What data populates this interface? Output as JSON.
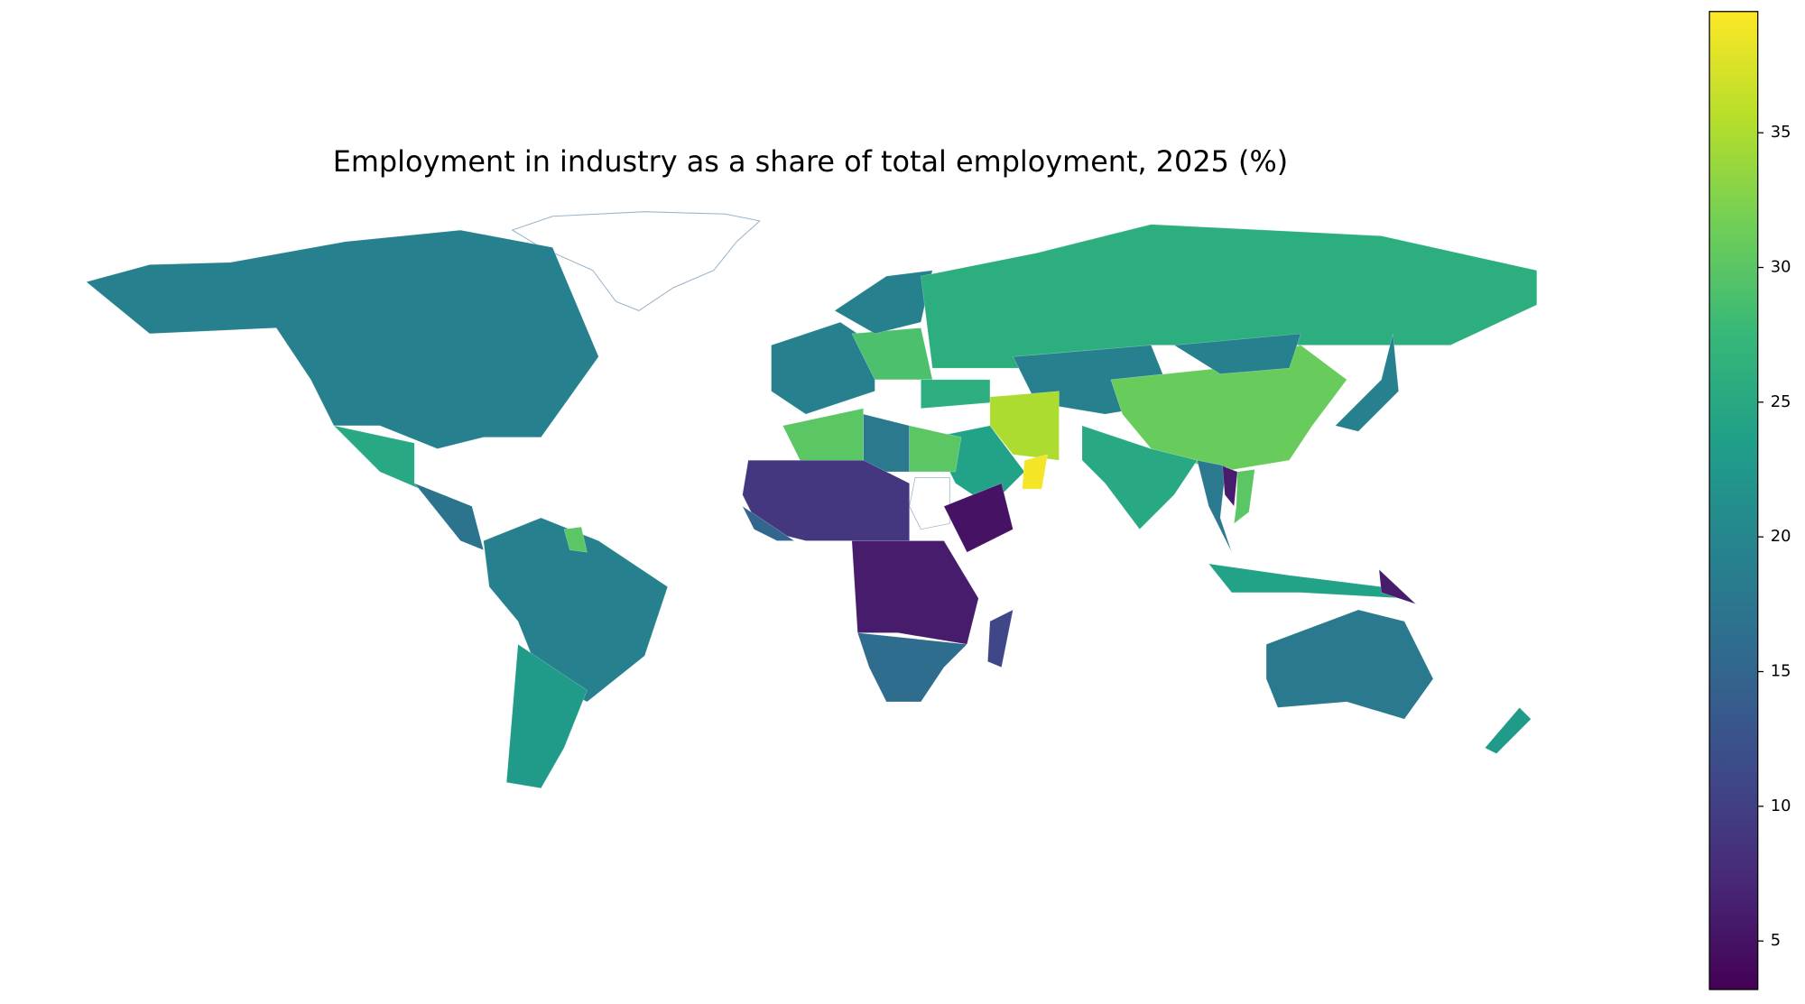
{
  "chart_data": {
    "type": "choropleth",
    "title": "Employment in industry as a share of total employment, 2025 (%)",
    "values": [
      19,
      25,
      17,
      19,
      23,
      30,
      19,
      29,
      19,
      26,
      19,
      35,
      24,
      39,
      30,
      18,
      30,
      9,
      15,
      5,
      6,
      16,
      11,
      31,
      19,
      25,
      18,
      24,
      6,
      18,
      23,
      19,
      26,
      6,
      30
    ],
    "colormap": "viridis",
    "zlim": [
      3.2,
      39.5
    ],
    "zticks": [
      5,
      10,
      15,
      20,
      25,
      30,
      35
    ]
  }
}
